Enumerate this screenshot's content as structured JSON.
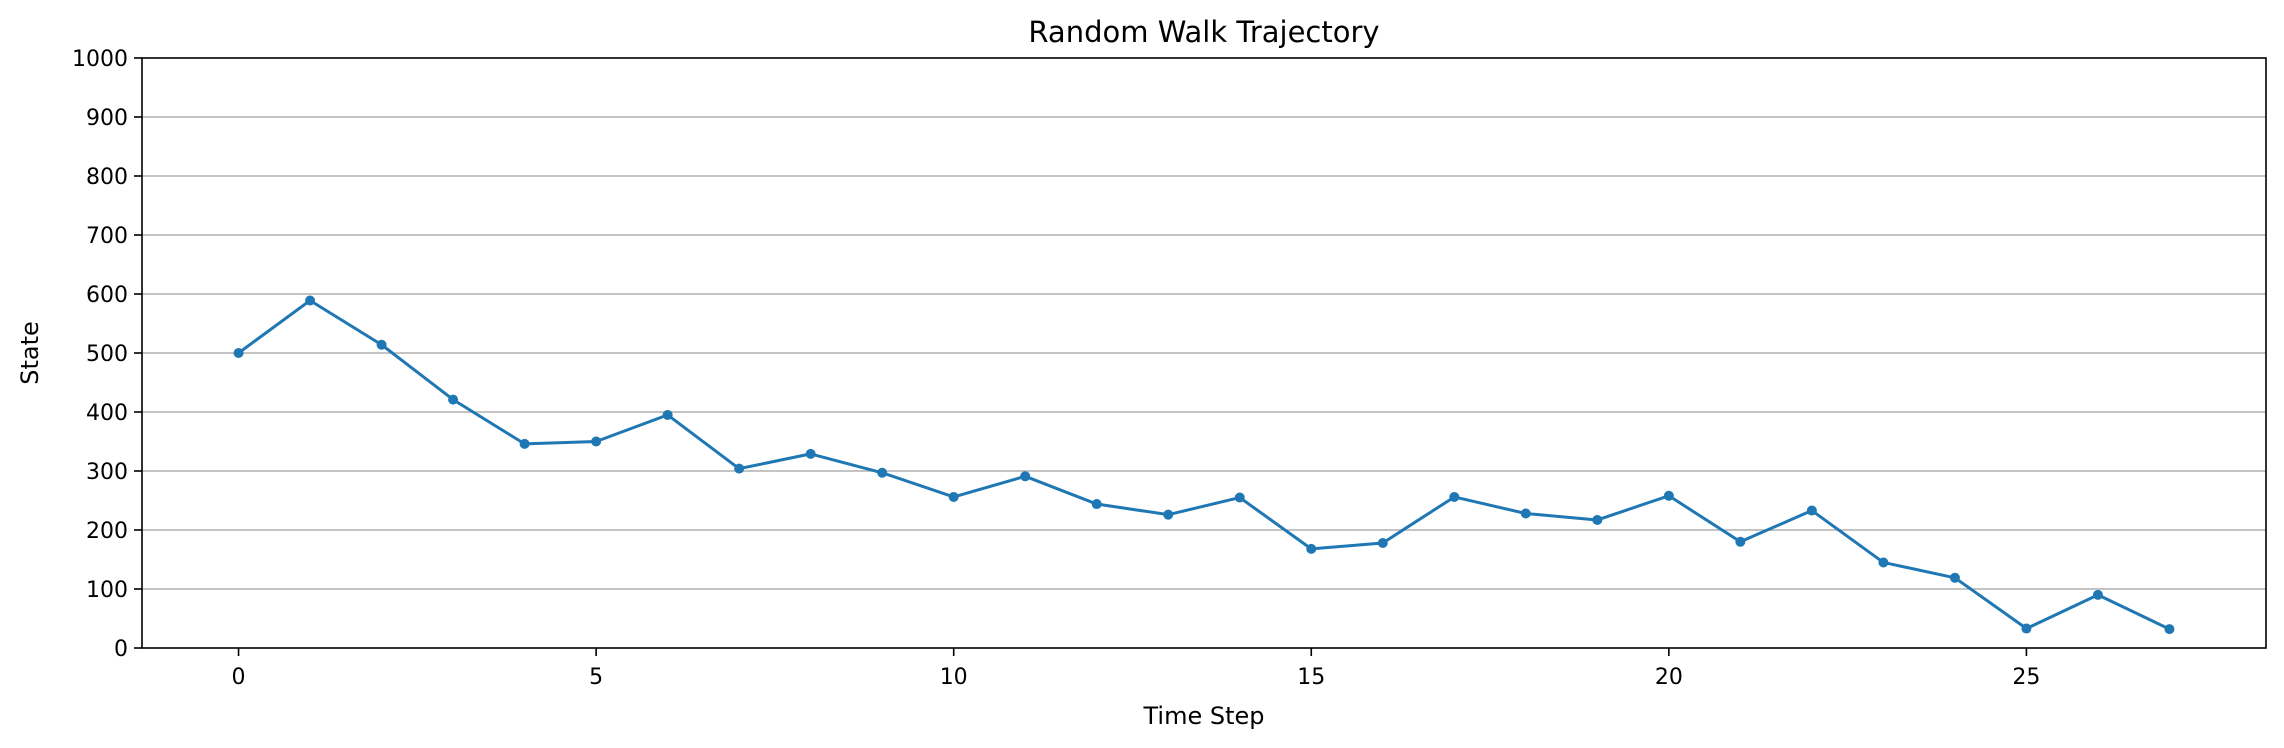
{
  "chart_data": {
    "type": "line",
    "title": "Random Walk Trajectory",
    "xlabel": "Time Step",
    "ylabel": "State",
    "xlim": [
      -1.35,
      28.35
    ],
    "ylim": [
      0,
      1000
    ],
    "x_ticks": [
      0,
      5,
      10,
      15,
      20,
      25
    ],
    "y_ticks": [
      0,
      100,
      200,
      300,
      400,
      500,
      600,
      700,
      800,
      900,
      1000
    ],
    "grid": "horizontal",
    "legend": "none",
    "series": [
      {
        "color": "#1f77b4",
        "marker": "circle",
        "x": [
          0,
          1,
          2,
          3,
          4,
          5,
          6,
          7,
          8,
          9,
          10,
          11,
          12,
          13,
          14,
          15,
          16,
          17,
          18,
          19,
          20,
          21,
          22,
          23,
          24,
          25,
          26,
          27
        ],
        "y": [
          500,
          589,
          514,
          421,
          346,
          350,
          395,
          304,
          329,
          297,
          256,
          291,
          244,
          226,
          255,
          168,
          178,
          256,
          228,
          217,
          258,
          180,
          233,
          145,
          119,
          33,
          90,
          32
        ]
      }
    ]
  }
}
